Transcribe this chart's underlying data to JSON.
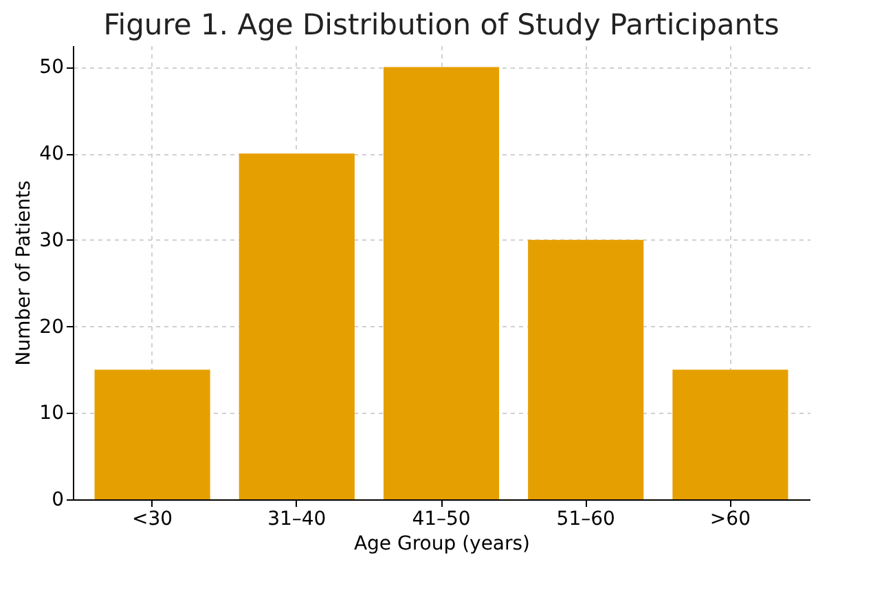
{
  "chart_data": {
    "type": "bar",
    "title": "Figure 1. Age Distribution of Study Participants",
    "xlabel": "Age Group (years)",
    "ylabel": "Number of Patients",
    "categories": [
      "<30",
      "31–40",
      "41–50",
      "51–60",
      ">60"
    ],
    "values": [
      15,
      40,
      50,
      30,
      15
    ],
    "color": "#e69f00",
    "ylim": [
      0,
      52.5
    ],
    "yticks": [
      0,
      10,
      20,
      30,
      40,
      50
    ],
    "grid": true
  }
}
